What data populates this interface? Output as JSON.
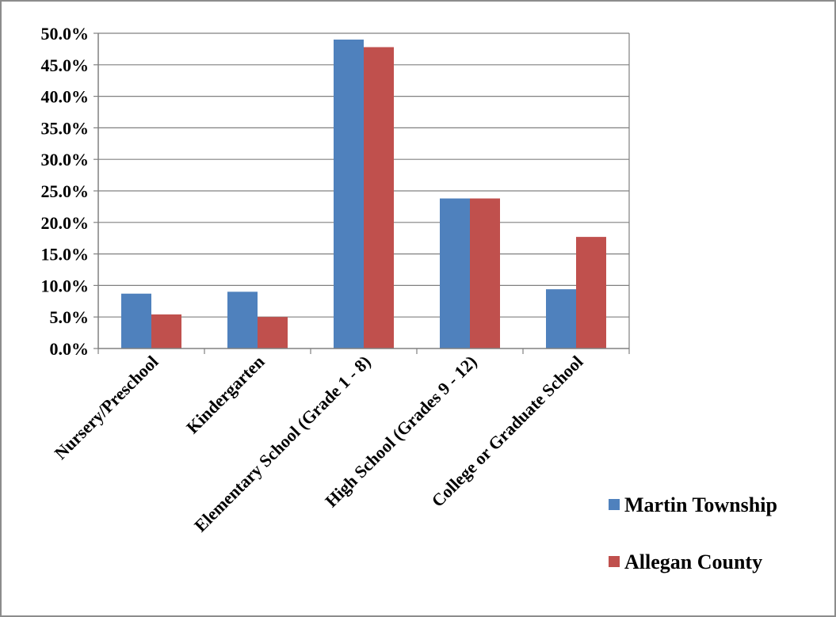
{
  "chart_data": {
    "type": "bar",
    "title": "",
    "xlabel": "",
    "ylabel": "",
    "categories": [
      "Nursery/Preschool",
      "Kindergarten",
      "Elementary School (Grade 1 - 8)",
      "High School (Grades 9 - 12)",
      "College or Graduate School"
    ],
    "series": [
      {
        "name": "Martin Township",
        "color": "#4f81bd",
        "values": [
          8.7,
          9.0,
          49.0,
          23.8,
          9.4
        ]
      },
      {
        "name": "Allegan County",
        "color": "#c0504d",
        "values": [
          5.4,
          5.0,
          47.8,
          23.8,
          17.7
        ]
      }
    ],
    "ylim": [
      0,
      50
    ],
    "yticks": [
      "0.0%",
      "5.0%",
      "10.0%",
      "15.0%",
      "20.0%",
      "25.0%",
      "30.0%",
      "35.0%",
      "40.0%",
      "45.0%",
      "50.0%"
    ],
    "ytick_values": [
      0,
      5,
      10,
      15,
      20,
      25,
      30,
      35,
      40,
      45,
      50
    ],
    "grid": true,
    "legend_position": "bottom-right"
  }
}
